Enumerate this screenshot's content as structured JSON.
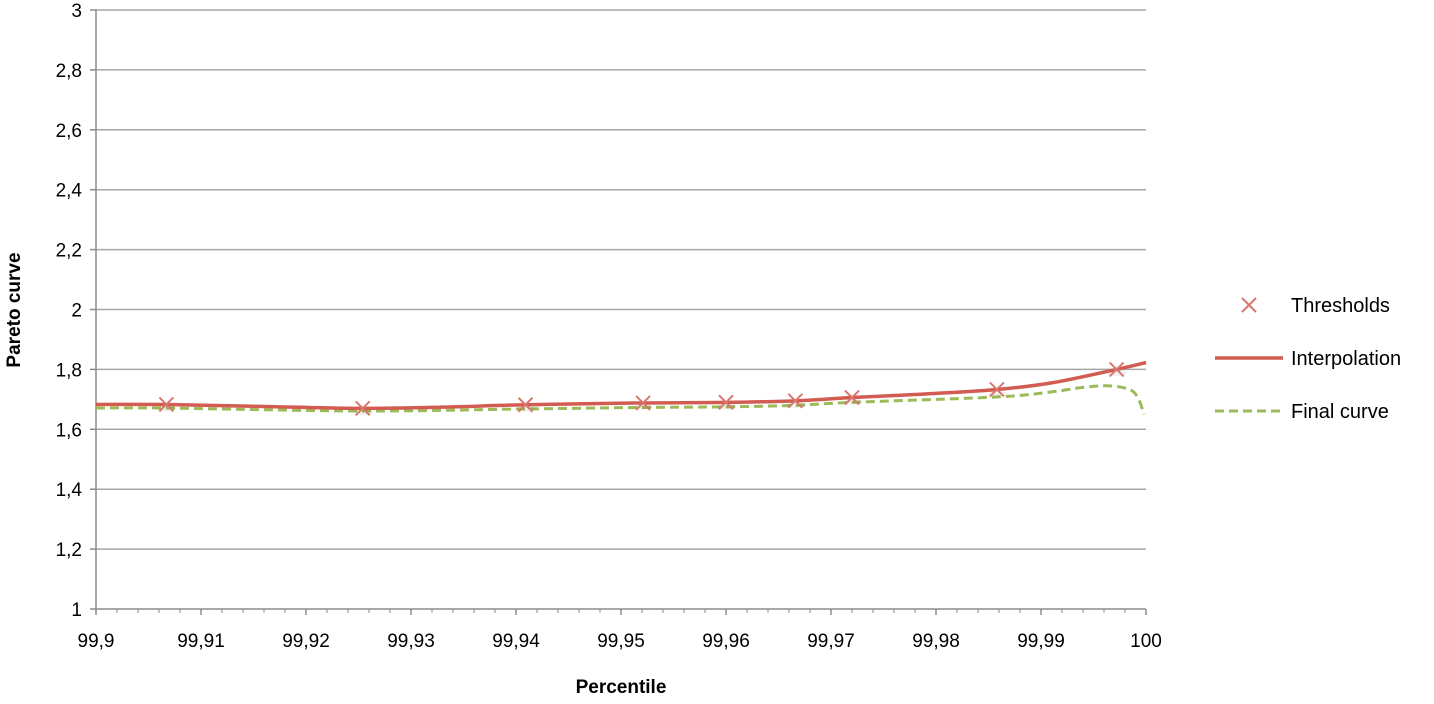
{
  "chart_data": {
    "type": "line",
    "title": "",
    "xlabel": "Percentile",
    "ylabel": "Pareto curve",
    "xlim": [
      99.9,
      100
    ],
    "ylim": [
      1,
      3
    ],
    "x_ticks": [
      {
        "value": 99.9,
        "label": "99,9"
      },
      {
        "value": 99.91,
        "label": "99,91"
      },
      {
        "value": 99.92,
        "label": "99,92"
      },
      {
        "value": 99.93,
        "label": "99,93"
      },
      {
        "value": 99.94,
        "label": "99,94"
      },
      {
        "value": 99.95,
        "label": "99,95"
      },
      {
        "value": 99.96,
        "label": "99,96"
      },
      {
        "value": 99.97,
        "label": "99,97"
      },
      {
        "value": 99.98,
        "label": "99,98"
      },
      {
        "value": 99.99,
        "label": "99,99"
      },
      {
        "value": 100,
        "label": "100"
      }
    ],
    "y_ticks": [
      {
        "value": 1,
        "label": "1"
      },
      {
        "value": 1.2,
        "label": "1,2"
      },
      {
        "value": 1.4,
        "label": "1,4"
      },
      {
        "value": 1.6,
        "label": "1,6"
      },
      {
        "value": 1.8,
        "label": "1,8"
      },
      {
        "value": 2,
        "label": "2"
      },
      {
        "value": 2.2,
        "label": "2,2"
      },
      {
        "value": 2.4,
        "label": "2,4"
      },
      {
        "value": 2.6,
        "label": "2,6"
      },
      {
        "value": 2.8,
        "label": "2,8"
      },
      {
        "value": 3,
        "label": "3"
      }
    ],
    "grid": true,
    "legend_position": "right",
    "series": [
      {
        "name": "Thresholds",
        "kind": "scatter",
        "marker": "x",
        "color": "#d9776e",
        "points": [
          {
            "x": 99.9067,
            "y": 1.683
          },
          {
            "x": 99.9254,
            "y": 1.67
          },
          {
            "x": 99.9409,
            "y": 1.682
          },
          {
            "x": 99.9521,
            "y": 1.688
          },
          {
            "x": 99.96,
            "y": 1.69
          },
          {
            "x": 99.9666,
            "y": 1.695
          },
          {
            "x": 99.972,
            "y": 1.706
          },
          {
            "x": 99.9858,
            "y": 1.733
          },
          {
            "x": 99.9972,
            "y": 1.8
          }
        ]
      },
      {
        "name": "Interpolation",
        "kind": "line",
        "color": "#d25c52",
        "dash": "solid",
        "points": [
          {
            "x": 99.9,
            "y": 1.683
          },
          {
            "x": 99.9067,
            "y": 1.683
          },
          {
            "x": 99.915,
            "y": 1.677
          },
          {
            "x": 99.9254,
            "y": 1.67
          },
          {
            "x": 99.933,
            "y": 1.674
          },
          {
            "x": 99.9409,
            "y": 1.682
          },
          {
            "x": 99.9521,
            "y": 1.688
          },
          {
            "x": 99.96,
            "y": 1.69
          },
          {
            "x": 99.9666,
            "y": 1.695
          },
          {
            "x": 99.972,
            "y": 1.706
          },
          {
            "x": 99.979,
            "y": 1.718
          },
          {
            "x": 99.9858,
            "y": 1.733
          },
          {
            "x": 99.991,
            "y": 1.755
          },
          {
            "x": 99.9972,
            "y": 1.8
          },
          {
            "x": 100,
            "y": 1.823
          }
        ]
      },
      {
        "name": "Final curve",
        "kind": "line",
        "color": "#9bbb59",
        "dash": "dashed",
        "points": [
          {
            "x": 99.9,
            "y": 1.671
          },
          {
            "x": 99.9067,
            "y": 1.671
          },
          {
            "x": 99.9254,
            "y": 1.661
          },
          {
            "x": 99.9409,
            "y": 1.668
          },
          {
            "x": 99.9521,
            "y": 1.673
          },
          {
            "x": 99.96,
            "y": 1.675
          },
          {
            "x": 99.9666,
            "y": 1.68
          },
          {
            "x": 99.972,
            "y": 1.69
          },
          {
            "x": 99.9858,
            "y": 1.708
          },
          {
            "x": 99.991,
            "y": 1.725
          },
          {
            "x": 99.994,
            "y": 1.74
          },
          {
            "x": 99.9965,
            "y": 1.745
          },
          {
            "x": 99.9985,
            "y": 1.732
          },
          {
            "x": 99.9993,
            "y": 1.7
          },
          {
            "x": 99.9998,
            "y": 1.65
          }
        ]
      }
    ]
  }
}
